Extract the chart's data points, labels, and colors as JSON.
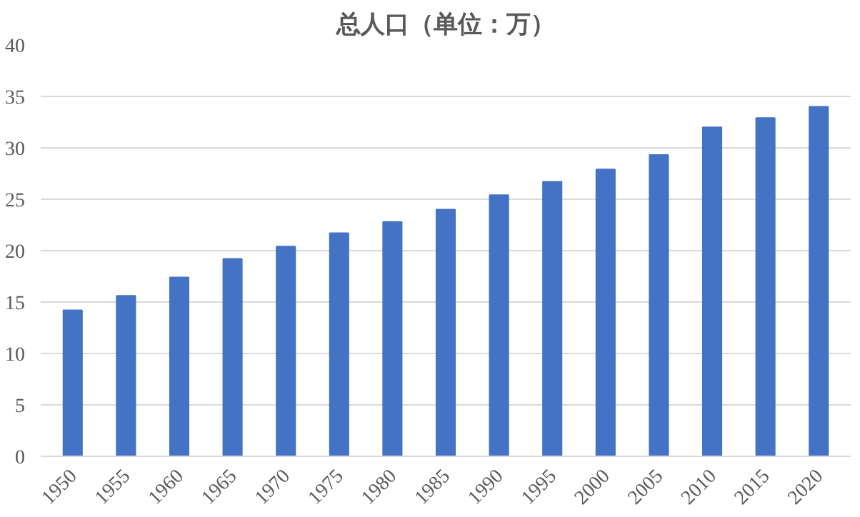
{
  "chart_data": {
    "type": "bar",
    "title": "总人口（单位：万）",
    "categories": [
      "1950",
      "1955",
      "1960",
      "1965",
      "1970",
      "1975",
      "1980",
      "1985",
      "1990",
      "1995",
      "2000",
      "2005",
      "2010",
      "2015",
      "2020"
    ],
    "values": [
      14.2,
      15.6,
      17.4,
      19.2,
      20.4,
      21.7,
      22.8,
      24.0,
      25.4,
      26.7,
      27.9,
      29.3,
      32.0,
      32.9,
      34.0
    ],
    "color": "#4472c4",
    "ylim": [
      0,
      40
    ],
    "yticks": [
      0,
      5,
      10,
      15,
      20,
      25,
      30,
      35,
      40
    ],
    "grid": "y"
  }
}
